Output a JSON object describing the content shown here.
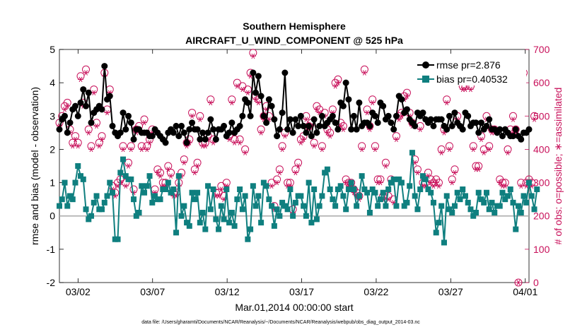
{
  "chart_data": {
    "type": "line",
    "title": "Southern Hemisphere",
    "subtitle": "AIRCRAFT_U_WIND_COMPONENT @ 525 hPa",
    "xlabel": "Mar.01,2014 00:00:00 start",
    "ylabel_left": "rmse and bias (model - observation)",
    "ylabel_right": "# of obs: o=possible; ∗=assimilated",
    "footnote": "data file: /Users/gharamti/Documents/NCAR/Reanalysis/~/Documents/NCAR/Reanalysis/webpub/obs_diag_output_2014-03.nc",
    "x_range_days": [
      -0.25,
      31.25
    ],
    "ylim_left": [
      -2,
      5
    ],
    "ylim_right": [
      0,
      700
    ],
    "left_ticks": [
      "-2",
      "-1",
      "0",
      "1",
      "2",
      "3",
      "4",
      "5"
    ],
    "right_ticks": [
      "0",
      "100",
      "200",
      "300",
      "400",
      "500",
      "600",
      "700"
    ],
    "x_ticks": [
      {
        "day": 1,
        "label": "03/02"
      },
      {
        "day": 6,
        "label": "03/07"
      },
      {
        "day": 11,
        "label": "03/12"
      },
      {
        "day": 16,
        "label": "03/17"
      },
      {
        "day": 21,
        "label": "03/22"
      },
      {
        "day": 26,
        "label": "03/27"
      },
      {
        "day": 31,
        "label": "04/01"
      }
    ],
    "series": [
      {
        "name": "rmse pr=2.876",
        "color": "#000000",
        "marker": "circle",
        "values": [
          2.6,
          2.9,
          3.0,
          2.5,
          2.8,
          3.2,
          3.3,
          3.0,
          3.4,
          3.8,
          3.3,
          3.7,
          2.8,
          3.1,
          3.2,
          3.3,
          3.2,
          4.5,
          3.5,
          3.6,
          2.7,
          2.5,
          2.4,
          2.5,
          3.1,
          2.6,
          3.0,
          2.8,
          2.3,
          2.6,
          2.6,
          2.5,
          2.5,
          2.5,
          2.4,
          2.4,
          2.6,
          2.5,
          2.4,
          2.3,
          2.2,
          2.5,
          2.6,
          2.5,
          2.7,
          2.4,
          2.7,
          2.5,
          2.2,
          2.6,
          2.8,
          2.6,
          2.6,
          2.3,
          2.5,
          2.3,
          2.5,
          2.9,
          2.6,
          2.3,
          2.6,
          2.6,
          2.7,
          2.4,
          2.5,
          2.8,
          2.5,
          2.6,
          2.7,
          3.0,
          3.5,
          3.4,
          3.0,
          4.3,
          3.7,
          4.2,
          3.6,
          3.0,
          2.8,
          3.5,
          3.3,
          2.9,
          2.4,
          2.6,
          3.1,
          4.3,
          2.6,
          2.9,
          2.5,
          2.9,
          2.7,
          3.0,
          2.7,
          2.5,
          2.7,
          2.4,
          2.9,
          2.5,
          2.7,
          3.0,
          2.7,
          2.8,
          2.9,
          3.0,
          2.8,
          2.6,
          3.4,
          3.3,
          4.0,
          3.5,
          2.6,
          3.0,
          2.6,
          3.4,
          2.7,
          2.8,
          2.8,
          2.7,
          3.1,
          3.0,
          2.8,
          3.4,
          3.3,
          2.9,
          3.0,
          2.8,
          2.6,
          3.0,
          3.6,
          3.5,
          3.1,
          3.2,
          2.9,
          2.8,
          2.7,
          3.1,
          3.0,
          3.1,
          2.9,
          2.8,
          2.9,
          2.7,
          2.9,
          2.9,
          2.9,
          2.7,
          2.6,
          3.0,
          2.7,
          3.1,
          2.8,
          2.7,
          2.6,
          3.1,
          3.0,
          2.7,
          2.8,
          2.8,
          2.5,
          2.8,
          2.6,
          2.7,
          2.9,
          2.6,
          2.6,
          2.5,
          2.6,
          2.4,
          2.6,
          2.5,
          2.4,
          2.4,
          2.6,
          2.4,
          2.3,
          2.5,
          2.5,
          2.6
        ]
      },
      {
        "name": "bias pr=0.40532",
        "color": "#0f7f7f",
        "marker": "square",
        "values": [
          0.3,
          0.5,
          1.0,
          0.3,
          0.6,
          0.5,
          1.0,
          1.5,
          1.2,
          1.1,
          0.2,
          -0.1,
          0.0,
          0.4,
          0.6,
          0.2,
          0.2,
          0.4,
          0.6,
          1.0,
          0.7,
          -0.7,
          -0.7,
          1.3,
          1.7,
          1.2,
          1.1,
          1.1,
          0.5,
          0.0,
          0.1,
          0.9,
          0.7,
          0.9,
          1.2,
          0.4,
          0.6,
          0.5,
          0.5,
          0.8,
          0.8,
          1.0,
          0.7,
          0.8,
          -0.5,
          1.2,
          0.0,
          0.3,
          -0.2,
          -0.3,
          0.7,
          0.5,
          0.7,
          -0.2,
          0.1,
          -0.4,
          0.9,
          0.2,
          0.8,
          -0.1,
          -0.4,
          0.3,
          -0.1,
          0.8,
          -0.2,
          0.1,
          -0.3,
          0.5,
          0.8,
          0.2,
          0.6,
          -0.7,
          -0.4,
          0.9,
          0.3,
          0.6,
          -0.2,
          1.0,
          0.9,
          0.5,
          0.3,
          -0.3,
          0.2,
          0.0,
          0.4,
          0.3,
          0.2,
          0.8,
          0.0,
          0.4,
          0.6,
          0.6,
          0.3,
          0.0,
          1.0,
          -0.2,
          0.8,
          -0.1,
          0.3,
          0.6,
          1.3,
          1.4,
          0.8,
          0.5,
          0.3,
          0.8,
          0.9,
          0.6,
          0.2,
          0.8,
          1.0,
          0.8,
          0.3,
          0.6,
          1.2,
          0.8,
          0.7,
          0.1,
          0.8,
          0.7,
          0.3,
          0.5,
          0.7,
          0.3,
          0.8,
          1.0,
          1.1,
          0.3,
          1.1,
          1.0,
          0.3,
          0.4,
          0.9,
          1.9,
          0.6,
          0.2,
          0.8,
          1.2,
          1.1,
          0.8,
          0.7,
          0.4,
          -0.5,
          -0.2,
          0.3,
          -0.8,
          0.6,
          0.2,
          0.1,
          0.3,
          0.7,
          0.5,
          0.8,
          0.6,
          0.4,
          0.2,
          0.0,
          0.1,
          0.7,
          0.5,
          0.4,
          0.7,
          0.2,
          0.4,
          0.1,
          0.3,
          0.3,
          0.7,
          0.5,
          0.6,
          0.8,
          0.4,
          -0.4,
          0.3,
          0.1,
          0.6,
          0.4,
          1.0,
          0.6,
          0.2,
          0.8
        ]
      },
      {
        "name": "possible",
        "color": "#c8105a",
        "marker": "circle-open",
        "values": [
          480,
          500,
          530,
          540,
          460,
          420,
          440,
          420,
          620,
          540,
          640,
          460,
          410,
          580,
          480,
          420,
          440,
          630,
          520,
          580,
          290,
          270,
          300,
          310,
          410,
          300,
          360,
          410,
          280,
          460,
          470,
          410,
          490,
          410,
          430,
          460,
          280,
          340,
          330,
          300,
          300,
          350,
          330,
          270,
          270,
          300,
          330,
          370,
          420,
          430,
          510,
          340,
          360,
          500,
          420,
          420,
          440,
          550,
          430,
          270,
          270,
          290,
          260,
          300,
          440,
          550,
          430,
          600,
          430,
          590,
          400,
          580,
          630,
          690,
          560,
          550,
          460,
          500,
          530,
          500,
          300,
          230,
          310,
          340,
          410,
          450,
          300,
          300,
          220,
          340,
          360,
          430,
          440,
          500,
          470,
          480,
          420,
          530,
          520,
          410,
          510,
          460,
          450,
          520,
          600,
          610,
          480,
          470,
          310,
          300,
          300,
          280,
          270,
          260,
          410,
          640,
          520,
          470,
          550,
          410,
          310,
          310,
          260,
          360,
          260,
          310,
          250,
          440,
          500,
          510,
          560,
          570,
          510,
          480,
          370,
          340,
          470,
          300,
          300,
          330,
          310,
          300,
          310,
          300,
          400,
          460,
          550,
          410,
          310,
          340,
          500,
          620,
          590,
          590,
          610,
          590,
          410,
          350,
          350,
          440,
          400,
          500,
          410,
          460,
          460,
          620,
          310,
          300,
          300,
          400,
          460,
          500,
          460,
          0,
          300,
          630,
          300,
          310,
          300,
          500
        ]
      },
      {
        "name": "assimilated",
        "color": "#c8105a",
        "marker": "asterisk",
        "values": [
          470,
          490,
          520,
          530,
          450,
          410,
          430,
          410,
          610,
          530,
          630,
          450,
          400,
          570,
          470,
          410,
          430,
          620,
          510,
          570,
          280,
          260,
          290,
          300,
          400,
          290,
          350,
          400,
          270,
          450,
          460,
          400,
          480,
          400,
          420,
          450,
          270,
          330,
          320,
          290,
          290,
          340,
          320,
          260,
          260,
          290,
          320,
          360,
          410,
          420,
          500,
          330,
          350,
          490,
          410,
          410,
          430,
          540,
          420,
          260,
          260,
          280,
          250,
          290,
          430,
          540,
          420,
          590,
          420,
          580,
          390,
          570,
          620,
          680,
          550,
          540,
          450,
          490,
          520,
          490,
          290,
          220,
          300,
          330,
          400,
          440,
          290,
          290,
          210,
          330,
          350,
          420,
          430,
          490,
          460,
          470,
          410,
          520,
          510,
          400,
          500,
          450,
          440,
          510,
          590,
          600,
          470,
          460,
          300,
          290,
          290,
          270,
          260,
          250,
          400,
          630,
          510,
          460,
          540,
          400,
          300,
          300,
          250,
          350,
          250,
          300,
          240,
          430,
          490,
          500,
          550,
          560,
          500,
          470,
          360,
          330,
          460,
          290,
          290,
          320,
          300,
          290,
          300,
          290,
          390,
          450,
          540,
          400,
          300,
          330,
          490,
          610,
          580,
          580,
          600,
          580,
          400,
          340,
          340,
          430,
          390,
          490,
          400,
          450,
          450,
          610,
          300,
          290,
          290,
          390,
          450,
          490,
          450,
          0,
          290,
          620,
          290,
          300,
          290,
          490
        ]
      }
    ]
  }
}
